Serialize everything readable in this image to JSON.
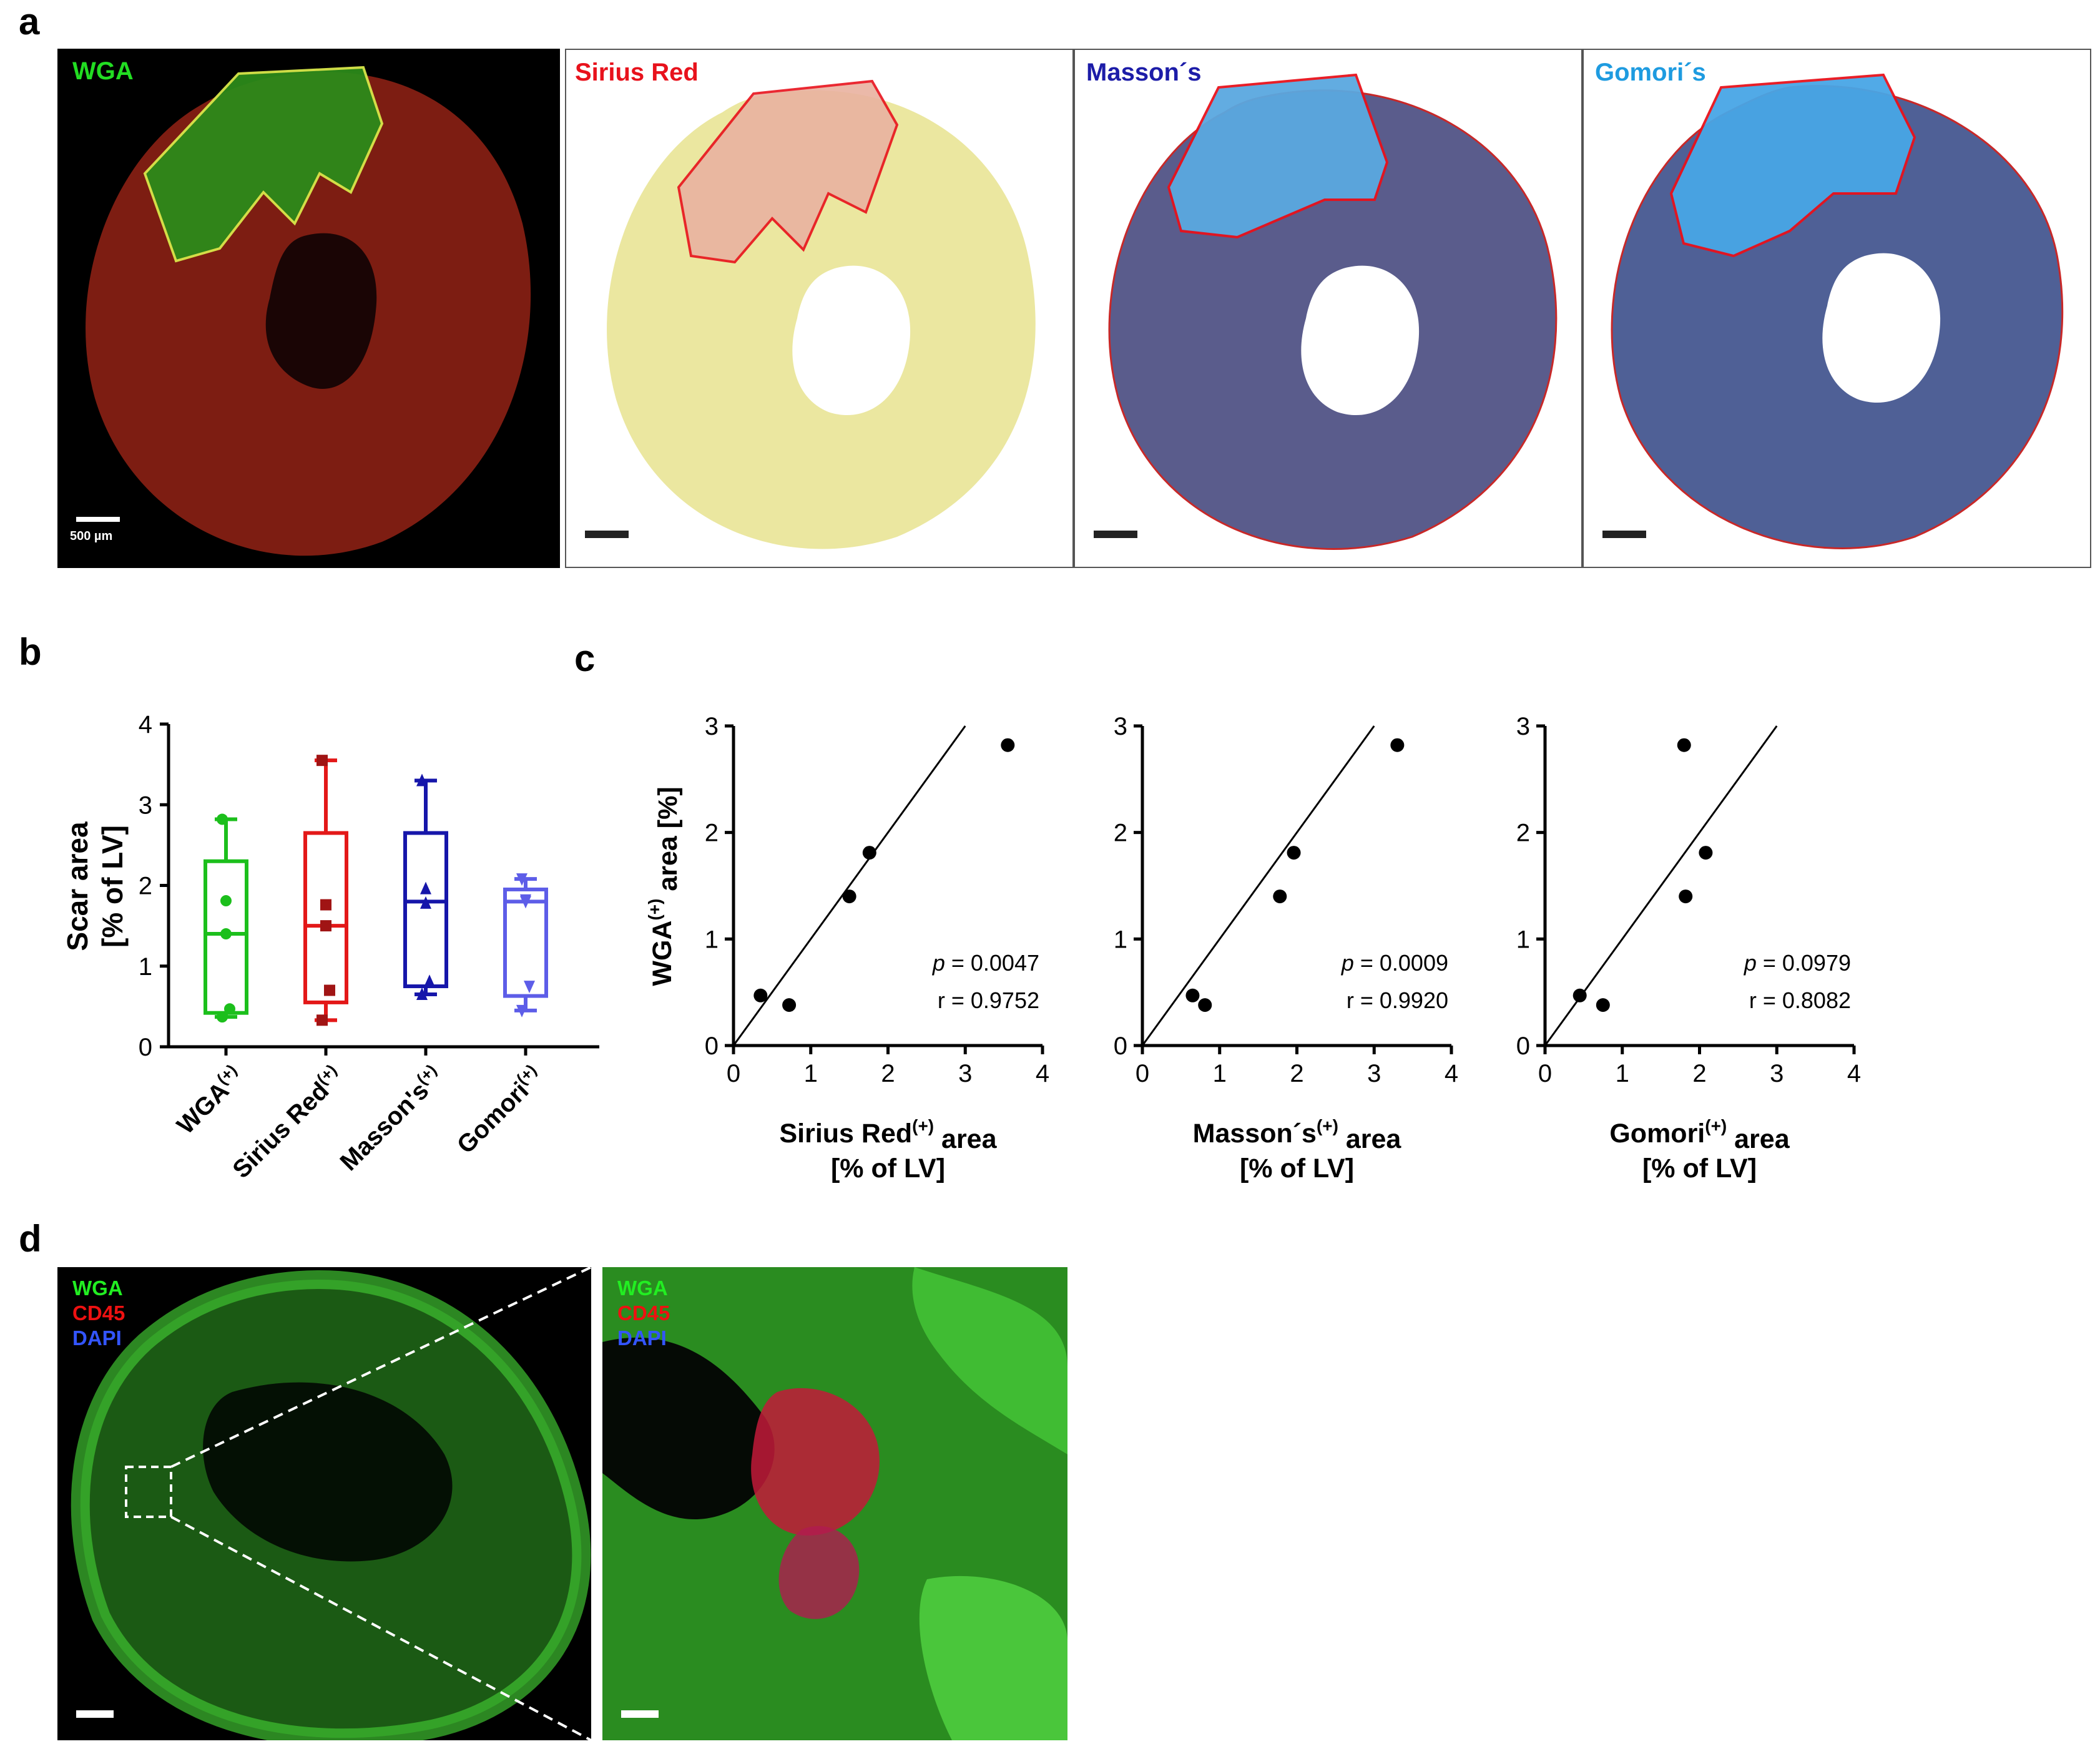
{
  "panels": {
    "a": "a",
    "b": "b",
    "c": "c",
    "d": "d"
  },
  "panel_a": {
    "images": [
      {
        "label": "WGA",
        "color": "#22dd22",
        "bg": "#000000",
        "tissue": "#7a1a10"
      },
      {
        "label": "Sirius Red",
        "color": "#e8121c",
        "bg": "#ffffff",
        "tissue": "#e9e49a"
      },
      {
        "label": "Masson´s",
        "color": "#1c1ca8",
        "bg": "#ffffff",
        "tissue": "#5a5a8a"
      },
      {
        "label": "Gomori´s",
        "color": "#1e9be0",
        "bg": "#ffffff",
        "tissue": "#4e5f95"
      }
    ],
    "scale_bar": "500 µm"
  },
  "panel_d": {
    "channels": [
      {
        "label": "WGA",
        "color": "#22ee22"
      },
      {
        "label": "CD45",
        "color": "#ee1111"
      },
      {
        "label": "DAPI",
        "color": "#3355ff"
      }
    ]
  },
  "chart_data": [
    {
      "type": "box",
      "panel": "b",
      "ylabel_line1": "Scar area",
      "ylabel_line2": "[% of LV]",
      "ylim": [
        0,
        4
      ],
      "yticks": [
        "0",
        "1",
        "2",
        "3",
        "4"
      ],
      "groups": [
        {
          "name": "WGA",
          "sup": "(+)",
          "color": "#1cbf1c",
          "marker": "circle",
          "min": 0.37,
          "q1": 0.42,
          "median": 1.4,
          "q3": 2.3,
          "max": 2.82,
          "points": [
            2.82,
            1.81,
            1.4,
            0.47,
            0.37
          ]
        },
        {
          "name": "Sirius Red",
          "sup": "(+)",
          "color": "#e31818",
          "marker": "square",
          "min": 0.33,
          "q1": 0.55,
          "median": 1.5,
          "q3": 2.65,
          "max": 3.55,
          "points": [
            3.55,
            1.76,
            1.5,
            0.7,
            0.33
          ]
        },
        {
          "name": "Masson's",
          "sup": "(+)",
          "color": "#1616aa",
          "marker": "triangle-up",
          "min": 0.65,
          "q1": 0.75,
          "median": 1.8,
          "q3": 2.65,
          "max": 3.3,
          "points": [
            3.3,
            1.96,
            1.78,
            0.81,
            0.65
          ]
        },
        {
          "name": "Gomori",
          "sup": "(+)",
          "color": "#5d5de8",
          "marker": "triangle-down",
          "min": 0.45,
          "q1": 0.63,
          "median": 1.8,
          "q3": 1.95,
          "max": 2.08,
          "points": [
            2.08,
            1.8,
            1.82,
            0.75,
            0.45
          ]
        }
      ]
    },
    {
      "type": "scatter",
      "panel": "c",
      "ylabel": "WGA",
      "ylabel_sup": "(+)",
      "ylabel_suffix": " area [%]",
      "xlabel": "Sirius Red",
      "xlabel_sup": "(+)",
      "xlabel_suffix": " area",
      "xlabel_line2": "[% of LV]",
      "xlim": [
        0,
        4
      ],
      "ylim": [
        0,
        3
      ],
      "xticks": [
        "0",
        "1",
        "2",
        "3",
        "4"
      ],
      "yticks": [
        "0",
        "1",
        "2",
        "3"
      ],
      "points": [
        [
          0.35,
          0.47
        ],
        [
          0.72,
          0.38
        ],
        [
          1.5,
          1.4
        ],
        [
          1.76,
          1.81
        ],
        [
          3.55,
          2.82
        ]
      ],
      "line": [
        [
          0,
          0
        ],
        [
          3,
          3
        ]
      ],
      "p_label": "p",
      "p_value": " = 0.0047",
      "r": "r = 0.9752"
    },
    {
      "type": "scatter",
      "panel": "c",
      "xlabel": "Masson´s",
      "xlabel_sup": "(+)",
      "xlabel_suffix": " area",
      "xlabel_line2": "[% of LV]",
      "xlim": [
        0,
        4
      ],
      "ylim": [
        0,
        3
      ],
      "xticks": [
        "0",
        "1",
        "2",
        "3",
        "4"
      ],
      "yticks": [
        "0",
        "1",
        "2",
        "3"
      ],
      "points": [
        [
          0.65,
          0.47
        ],
        [
          0.81,
          0.38
        ],
        [
          1.78,
          1.4
        ],
        [
          1.96,
          1.81
        ],
        [
          3.3,
          2.82
        ]
      ],
      "line": [
        [
          0,
          0
        ],
        [
          3,
          3
        ]
      ],
      "p_label": "p",
      "p_value": " = 0.0009",
      "r": "r = 0.9920"
    },
    {
      "type": "scatter",
      "panel": "c",
      "xlabel": "Gomori",
      "xlabel_sup": "(+)",
      "xlabel_suffix": " area",
      "xlabel_line2": "[% of LV]",
      "xlim": [
        0,
        4
      ],
      "ylim": [
        0,
        3
      ],
      "xticks": [
        "0",
        "1",
        "2",
        "3",
        "4"
      ],
      "yticks": [
        "0",
        "1",
        "2",
        "3"
      ],
      "points": [
        [
          0.45,
          0.47
        ],
        [
          0.75,
          0.38
        ],
        [
          1.82,
          1.4
        ],
        [
          2.08,
          1.81
        ],
        [
          1.8,
          2.82
        ]
      ],
      "line": [
        [
          0,
          0
        ],
        [
          3,
          3
        ]
      ],
      "p_label": "p",
      "p_value": " = 0.0979",
      "r": "r = 0.8082"
    }
  ]
}
